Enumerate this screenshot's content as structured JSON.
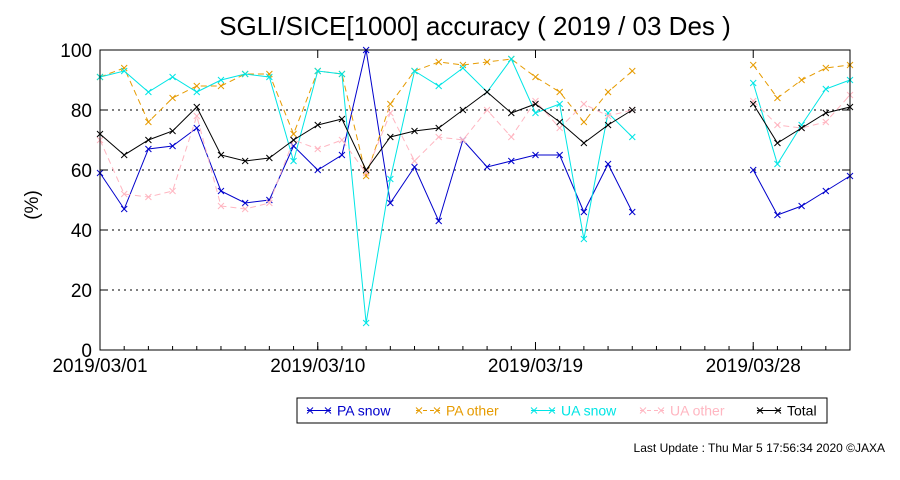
{
  "chart_data": {
    "type": "line",
    "title": "SGLI/SICE[1000] accuracy ( 2019 / 03 Des )",
    "ylabel": "(%)",
    "ylim": [
      0,
      100
    ],
    "yticks": [
      0,
      20,
      40,
      60,
      80,
      100
    ],
    "xlim": [
      1,
      32
    ],
    "xticks": [
      {
        "day": 1,
        "label": "2019/03/01"
      },
      {
        "day": 10,
        "label": "2019/03/10"
      },
      {
        "day": 19,
        "label": "2019/03/19"
      },
      {
        "day": 28,
        "label": "2019/03/28"
      }
    ],
    "grid": "horizontal dotted at 20, 40, 60, 80",
    "legend_position": "bottom-right, below plot",
    "series": [
      {
        "name": "PA snow",
        "color": "#0000cc",
        "dash": "solid",
        "x": [
          1,
          2,
          3,
          4,
          5,
          6,
          7,
          8,
          9,
          10,
          11,
          12,
          13,
          14,
          15,
          16,
          17,
          18,
          19,
          20,
          21,
          22,
          23,
          28,
          29,
          30,
          31,
          32
        ],
        "y": [
          59,
          47,
          67,
          68,
          74,
          53,
          49,
          50,
          68,
          60,
          65,
          100,
          49,
          61,
          43,
          70,
          61,
          63,
          65,
          65,
          46,
          62,
          46,
          60,
          45,
          48,
          53,
          58
        ]
      },
      {
        "name": "PA other",
        "color": "#e69b00",
        "dash": "6,4",
        "x": [
          1,
          2,
          3,
          4,
          5,
          6,
          7,
          8,
          9,
          10,
          11,
          12,
          13,
          14,
          15,
          16,
          17,
          18,
          19,
          20,
          21,
          22,
          23,
          28,
          29,
          30,
          31,
          32
        ],
        "y": [
          91,
          94,
          76,
          84,
          88,
          88,
          92,
          92,
          72,
          93,
          92,
          58,
          82,
          93,
          96,
          95,
          96,
          97,
          91,
          86,
          76,
          86,
          93,
          95,
          84,
          90,
          94,
          95
        ]
      },
      {
        "name": "UA snow",
        "color": "#00e5e5",
        "dash": "solid",
        "x": [
          1,
          2,
          3,
          4,
          5,
          6,
          7,
          8,
          9,
          10,
          11,
          12,
          13,
          14,
          15,
          16,
          17,
          18,
          19,
          20,
          21,
          22,
          23,
          28,
          29,
          30,
          31,
          32
        ],
        "y": [
          91,
          93,
          86,
          91,
          86,
          90,
          92,
          91,
          63,
          93,
          92,
          9,
          57,
          93,
          88,
          94,
          86,
          97,
          79,
          82,
          37,
          79,
          71,
          89,
          62,
          75,
          87,
          90
        ]
      },
      {
        "name": "UA other",
        "color": "#ffb6c1",
        "dash": "6,4",
        "x": [
          1,
          2,
          3,
          4,
          5,
          6,
          7,
          8,
          9,
          10,
          11,
          12,
          13,
          14,
          15,
          16,
          17,
          18,
          19,
          20,
          21,
          22,
          23,
          28,
          29,
          30,
          31,
          32
        ],
        "y": [
          70,
          52,
          51,
          53,
          78,
          48,
          47,
          49,
          70,
          67,
          70,
          59,
          79,
          63,
          71,
          70,
          80,
          71,
          83,
          74,
          82,
          78,
          80,
          83,
          75,
          74,
          76,
          85
        ]
      },
      {
        "name": "Total",
        "color": "#000000",
        "dash": "solid",
        "x": [
          1,
          2,
          3,
          4,
          5,
          6,
          7,
          8,
          9,
          10,
          11,
          12,
          13,
          14,
          15,
          16,
          17,
          18,
          19,
          20,
          21,
          22,
          23,
          28,
          29,
          30,
          31,
          32
        ],
        "y": [
          72,
          65,
          70,
          73,
          81,
          65,
          63,
          64,
          70,
          75,
          77,
          60,
          71,
          73,
          74,
          80,
          86,
          79,
          82,
          76,
          69,
          75,
          80,
          82,
          69,
          74,
          79,
          81
        ]
      }
    ]
  },
  "footer": {
    "last_update": "Last Update : Thu Mar  5 17:56:34 2020  ©JAXA"
  }
}
